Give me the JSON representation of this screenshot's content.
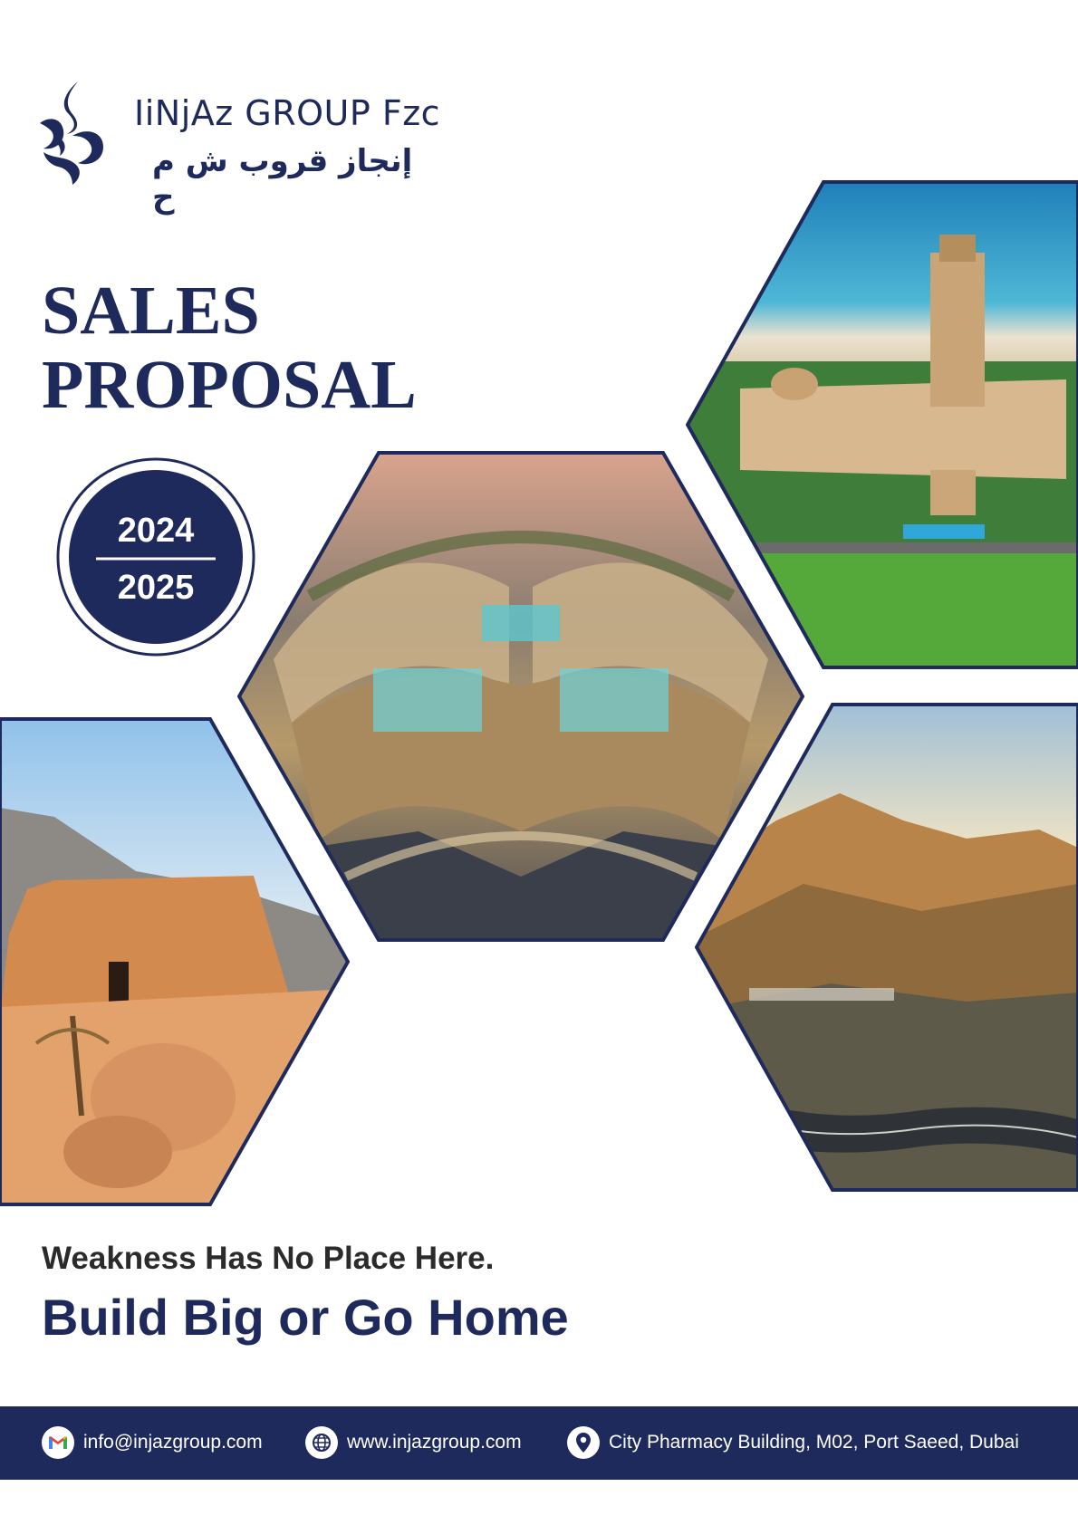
{
  "brand": {
    "name_en": "IiNjAz GROUP Fzc",
    "name_ar": "إنجاز قروب ش م ح"
  },
  "title": {
    "line1": "SALES",
    "line2": "PROPOSAL"
  },
  "years": {
    "start": "2024",
    "end": "2025"
  },
  "taglines": {
    "small": "Weakness Has No Place Here.",
    "big": "Build Big or Go Home"
  },
  "footer": {
    "email": "info@injazgroup.com",
    "website": "www.injazgroup.com",
    "address": "City Pharmacy Building, M02, Port Saeed, Dubai"
  },
  "colors": {
    "navy": "#1f2a5c",
    "white": "#ffffff"
  },
  "icons": [
    "gmail-icon",
    "globe-icon",
    "location-pin-icon"
  ]
}
